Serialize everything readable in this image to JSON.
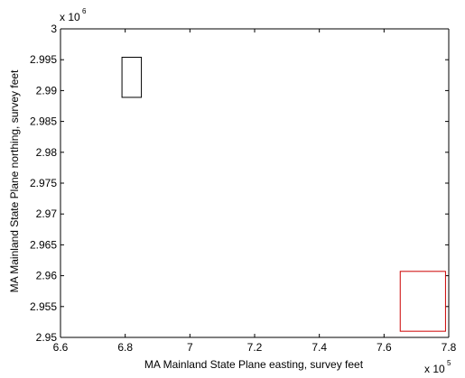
{
  "chart_data": {
    "type": "rectangles",
    "xlabel": "MA Mainland State Plane easting, survey feet",
    "ylabel": "MA Mainland State Plane northing, survey feet",
    "xlim": [
      660000,
      780000
    ],
    "ylim": [
      2950000,
      3000000
    ],
    "x_ticks": [
      660000,
      680000,
      700000,
      720000,
      740000,
      760000,
      780000
    ],
    "y_ticks": [
      2950000,
      2955000,
      2960000,
      2965000,
      2970000,
      2975000,
      2980000,
      2985000,
      2990000,
      2995000,
      3000000
    ],
    "x_tick_labels": [
      "6.6",
      "6.8",
      "7",
      "7.2",
      "7.4",
      "7.6",
      "7.8"
    ],
    "y_tick_labels": [
      "2.95",
      "2.955",
      "2.96",
      "2.965",
      "2.97",
      "2.975",
      "2.98",
      "2.985",
      "2.99",
      "2.995",
      "3"
    ],
    "x_multiplier": {
      "base": "x 10",
      "power": "5"
    },
    "y_multiplier": {
      "base": "x 10",
      "power": "6"
    },
    "grid": false,
    "rectangles": [
      {
        "x0": 679000,
        "x1": 685000,
        "y0": 2988900,
        "y1": 2995400,
        "color": "#000000"
      },
      {
        "x0": 765000,
        "x1": 779000,
        "y0": 2951000,
        "y1": 2960700,
        "color": "#cc0000"
      }
    ]
  }
}
